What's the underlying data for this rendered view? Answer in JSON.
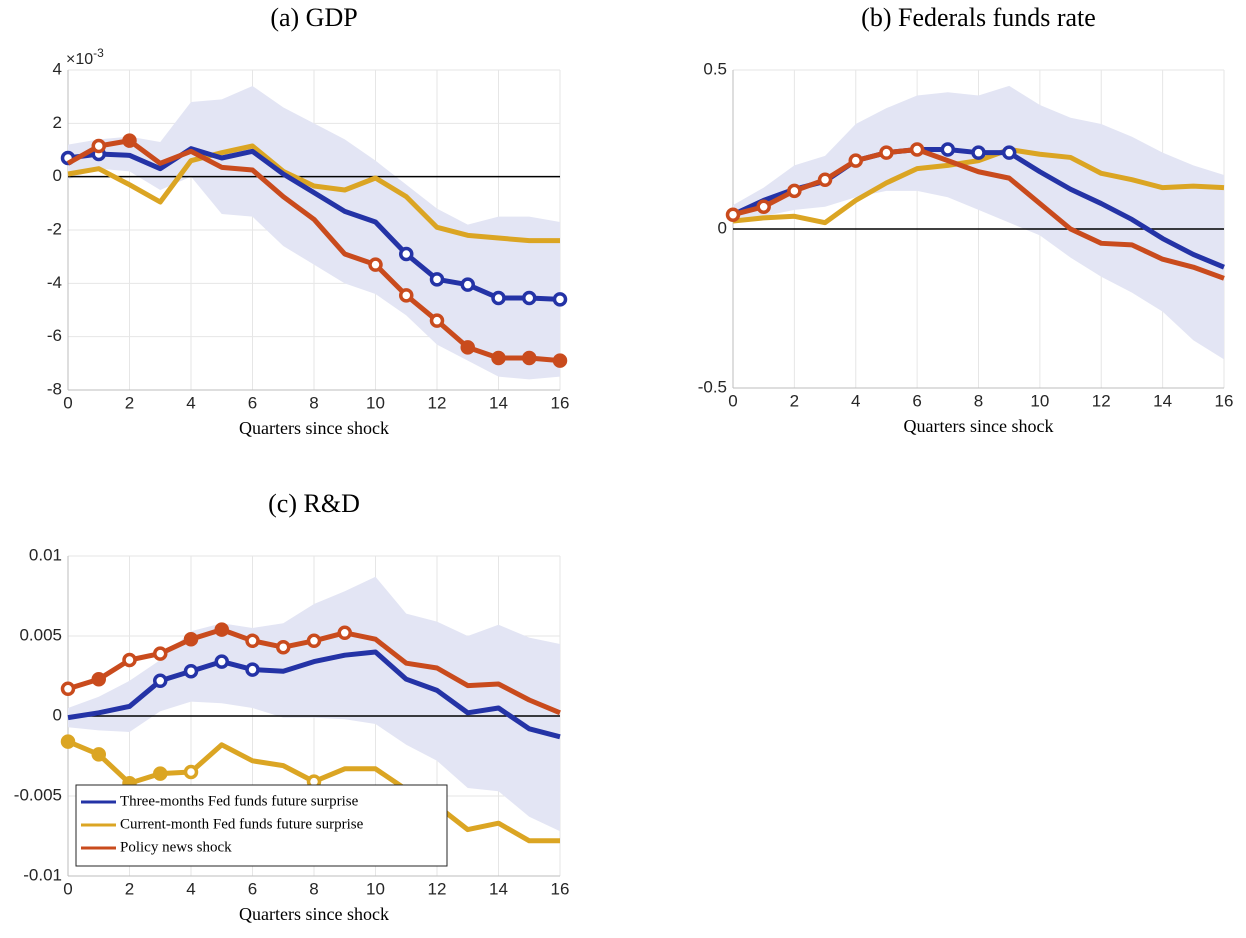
{
  "chart_data": [
    {
      "type": "line",
      "title": "(a) GDP",
      "xlabel": "Quarters since shock",
      "y_exponent": {
        "base": "×10",
        "power": "-3"
      },
      "x": [
        0,
        1,
        2,
        3,
        4,
        5,
        6,
        7,
        8,
        9,
        10,
        11,
        12,
        13,
        14,
        15,
        16
      ],
      "xlim": [
        0,
        16
      ],
      "xticks": [
        0,
        2,
        4,
        6,
        8,
        10,
        12,
        14,
        16
      ],
      "ylim": [
        -8,
        4
      ],
      "yticks": [
        -8,
        -6,
        -4,
        -2,
        0,
        2,
        4
      ],
      "grid": true,
      "band": {
        "color": "#e3e5f4",
        "upper": [
          1.2,
          1.4,
          1.5,
          1.3,
          2.8,
          2.9,
          3.4,
          2.6,
          2.0,
          1.4,
          0.6,
          -0.3,
          -1.2,
          -1.8,
          -1.5,
          -1.5,
          -1.7
        ],
        "lower": [
          -0.1,
          0.3,
          0.2,
          -0.5,
          0.0,
          -1.4,
          -1.5,
          -2.6,
          -3.3,
          -4.0,
          -4.4,
          -5.2,
          -6.3,
          -6.9,
          -7.5,
          -7.6,
          -7.5
        ]
      },
      "series": [
        {
          "color": "#dba523",
          "values": [
            0.1,
            0.3,
            -0.3,
            -0.95,
            0.6,
            0.9,
            1.15,
            0.2,
            -0.35,
            -0.5,
            -0.05,
            -0.75,
            -1.9,
            -2.2,
            -2.3,
            -2.4,
            -2.4
          ],
          "markers": [
            null,
            null,
            null,
            null,
            null,
            null,
            null,
            null,
            null,
            null,
            null,
            null,
            null,
            null,
            null,
            null,
            null
          ]
        },
        {
          "color": "#2433a6",
          "values": [
            0.7,
            0.85,
            0.8,
            0.3,
            1.05,
            0.7,
            0.95,
            0.1,
            -0.6,
            -1.3,
            -1.7,
            -2.9,
            -3.85,
            -4.05,
            -4.55,
            -4.55,
            -4.6
          ],
          "markers": [
            "open",
            "open",
            null,
            null,
            null,
            null,
            null,
            null,
            null,
            null,
            null,
            "open",
            "open",
            "open",
            "open",
            "open",
            "open"
          ]
        },
        {
          "color": "#c94b1d",
          "values": [
            0.5,
            1.15,
            1.35,
            0.5,
            0.95,
            0.35,
            0.25,
            -0.75,
            -1.6,
            -2.9,
            -3.3,
            -4.45,
            -5.4,
            -6.4,
            -6.8,
            -6.8,
            -6.9
          ],
          "markers": [
            null,
            "open",
            "filled",
            null,
            null,
            null,
            null,
            null,
            null,
            null,
            "open",
            "open",
            "open",
            "filled",
            "filled",
            "filled",
            "filled"
          ]
        }
      ]
    },
    {
      "type": "line",
      "title": "(b) Federals funds rate",
      "xlabel": "Quarters since shock",
      "x": [
        0,
        1,
        2,
        3,
        4,
        5,
        6,
        7,
        8,
        9,
        10,
        11,
        12,
        13,
        14,
        15,
        16
      ],
      "xlim": [
        0,
        16
      ],
      "xticks": [
        0,
        2,
        4,
        6,
        8,
        10,
        12,
        14,
        16
      ],
      "ylim": [
        -0.5,
        0.5
      ],
      "yticks": [
        -0.5,
        0,
        0.5
      ],
      "grid": true,
      "band": {
        "color": "#e3e5f4",
        "upper": [
          0.075,
          0.13,
          0.2,
          0.23,
          0.33,
          0.38,
          0.42,
          0.43,
          0.42,
          0.45,
          0.39,
          0.35,
          0.33,
          0.29,
          0.24,
          0.2,
          0.17
        ],
        "lower": [
          0.02,
          0.04,
          0.06,
          0.07,
          0.1,
          0.12,
          0.12,
          0.1,
          0.06,
          0.02,
          -0.02,
          -0.09,
          -0.15,
          -0.2,
          -0.26,
          -0.35,
          -0.41
        ]
      },
      "series": [
        {
          "color": "#dba523",
          "values": [
            0.025,
            0.035,
            0.04,
            0.02,
            0.09,
            0.145,
            0.19,
            0.2,
            0.215,
            0.25,
            0.235,
            0.225,
            0.175,
            0.155,
            0.13,
            0.135,
            0.13
          ],
          "markers": [
            null,
            null,
            null,
            null,
            null,
            null,
            null,
            null,
            null,
            null,
            null,
            null,
            null,
            null,
            null,
            null,
            null
          ]
        },
        {
          "color": "#2433a6",
          "values": [
            0.045,
            0.09,
            0.125,
            0.15,
            0.215,
            0.24,
            0.25,
            0.25,
            0.24,
            0.24,
            0.18,
            0.125,
            0.08,
            0.03,
            -0.03,
            -0.08,
            -0.12
          ],
          "markers": [
            null,
            null,
            null,
            null,
            null,
            null,
            null,
            "open",
            "open",
            "open",
            null,
            null,
            null,
            null,
            null,
            null,
            null
          ]
        },
        {
          "color": "#c94b1d",
          "values": [
            0.045,
            0.07,
            0.12,
            0.155,
            0.215,
            0.24,
            0.25,
            0.215,
            0.18,
            0.16,
            0.08,
            0.0,
            -0.045,
            -0.05,
            -0.095,
            -0.12,
            -0.155
          ],
          "markers": [
            "open",
            "open",
            "open",
            "open",
            "open",
            "open",
            "open",
            null,
            null,
            null,
            null,
            null,
            null,
            null,
            null,
            null,
            null
          ]
        }
      ]
    },
    {
      "type": "line",
      "title": "(c) R&D",
      "xlabel": "Quarters since shock",
      "x": [
        0,
        1,
        2,
        3,
        4,
        5,
        6,
        7,
        8,
        9,
        10,
        11,
        12,
        13,
        14,
        15,
        16
      ],
      "xlim": [
        0,
        16
      ],
      "xticks": [
        0,
        2,
        4,
        6,
        8,
        10,
        12,
        14,
        16
      ],
      "ylim": [
        -0.01,
        0.01
      ],
      "yticks": [
        -0.01,
        -0.005,
        0,
        0.005,
        0.01
      ],
      "grid": true,
      "legend": "lower left",
      "band": {
        "color": "#e3e5f4",
        "upper": [
          0.0005,
          0.0012,
          0.0022,
          0.0035,
          0.0053,
          0.0058,
          0.0055,
          0.0058,
          0.007,
          0.0078,
          0.0087,
          0.0064,
          0.0059,
          0.005,
          0.0057,
          0.0049,
          0.0045
        ],
        "lower": [
          -0.0007,
          -0.0009,
          -0.001,
          0.0003,
          0.0009,
          0.0008,
          0.0005,
          -0.0001,
          -0.0001,
          -0.0002,
          -0.0005,
          -0.0018,
          -0.0028,
          -0.0045,
          -0.0047,
          -0.0063,
          -0.0072
        ]
      },
      "series": [
        {
          "name": "Three-months Fed funds future surprise",
          "color": "#2433a6",
          "values": [
            -0.0001,
            0.0002,
            0.0006,
            0.0022,
            0.0028,
            0.0034,
            0.0029,
            0.0028,
            0.0034,
            0.0038,
            0.004,
            0.0023,
            0.0016,
            0.0002,
            0.0005,
            -0.0008,
            -0.0013
          ],
          "markers": [
            null,
            null,
            null,
            "open",
            "open",
            "open",
            "open",
            null,
            null,
            null,
            null,
            null,
            null,
            null,
            null,
            null,
            null
          ]
        },
        {
          "name": "Current-month Fed funds future surprise",
          "color": "#dba523",
          "values": [
            -0.0016,
            -0.0024,
            -0.0042,
            -0.0036,
            -0.0035,
            -0.0018,
            -0.0028,
            -0.0031,
            -0.0041,
            -0.0033,
            -0.0033,
            -0.0046,
            -0.0056,
            -0.0071,
            -0.0067,
            -0.0078,
            -0.0078
          ],
          "markers": [
            "filled",
            "filled",
            "filled",
            "filled",
            "open",
            null,
            null,
            null,
            "open",
            null,
            null,
            null,
            null,
            null,
            null,
            null,
            null
          ]
        },
        {
          "name": "Policy news shock",
          "color": "#c94b1d",
          "values": [
            0.0017,
            0.0023,
            0.0035,
            0.0039,
            0.0048,
            0.0054,
            0.0047,
            0.0043,
            0.0047,
            0.0052,
            0.0048,
            0.0033,
            0.003,
            0.0019,
            0.002,
            0.001,
            0.0002
          ],
          "markers": [
            "open",
            "filled",
            "open",
            "open",
            "filled",
            "filled",
            "open",
            "open",
            "open",
            "open",
            null,
            null,
            null,
            null,
            null,
            null,
            null
          ]
        }
      ]
    }
  ]
}
